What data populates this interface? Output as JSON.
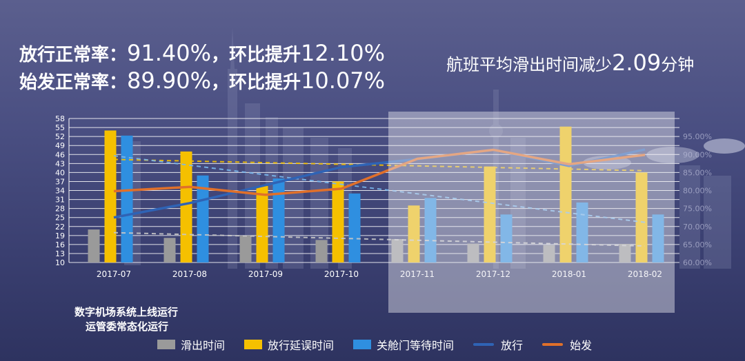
{
  "header": {
    "line1_label": "放行正常率：",
    "line1_rate": "91.40%",
    "line1_sep": "，环比提升",
    "line1_change": "12.10%",
    "line2_label": "始发正常率：",
    "line2_rate": "89.90%",
    "line2_sep": "，环比提升",
    "line2_change": "10.07%",
    "right_prefix": "航班平均滑出时间减少",
    "right_value": "2.09",
    "right_suffix": "分钟"
  },
  "notes": {
    "note1": "数字机场系统上线运行",
    "note2": "运管委常态化运行"
  },
  "colors": {
    "taxi_out": "#9a9a9a",
    "release_delay": "#f5c000",
    "door_wait": "#2f8fe0",
    "release_rate": "#2f63b5",
    "origin_rate": "#e0702a",
    "grid": "#ffffff",
    "highlight": "#e8e8f0"
  },
  "chart_data": {
    "type": "bar",
    "categories": [
      "2017-07",
      "2017-08",
      "2017-09",
      "2017-10",
      "2017-11",
      "2017-12",
      "2018-01",
      "2018-02"
    ],
    "y_ticks": [
      10,
      13,
      16,
      19,
      22,
      25,
      28,
      31,
      34,
      37,
      40,
      43,
      46,
      49,
      52,
      55,
      58
    ],
    "y2_ticks": [
      "60.00%",
      "65.00%",
      "70.00%",
      "75.00%",
      "80.00%",
      "85.00%",
      "90.00%",
      "95.00%"
    ],
    "ylim": [
      10,
      58
    ],
    "y2lim": [
      60,
      100
    ],
    "grid": true,
    "legend_position": "bottom",
    "highlight_from_category": "2017-11",
    "series": [
      {
        "name": "滑出时间",
        "kind": "bar",
        "values": [
          21,
          18.2,
          19,
          17.5,
          17.8,
          16.3,
          15.8,
          16.2
        ]
      },
      {
        "name": "放行延误时间",
        "kind": "bar",
        "values": [
          54,
          47,
          35.5,
          37,
          29,
          42,
          55.3,
          40
        ]
      },
      {
        "name": "关舱门等待时间",
        "kind": "bar",
        "values": [
          52.3,
          39,
          38,
          33,
          31.5,
          26,
          30,
          26
        ]
      },
      {
        "name": "放行",
        "kind": "line",
        "axis": "right",
        "values": [
          72.5,
          76.5,
          81.5,
          86.5,
          88.7,
          91.3,
          86.8,
          91.4
        ]
      },
      {
        "name": "始发",
        "kind": "line",
        "axis": "right",
        "values": [
          79.8,
          81,
          78.8,
          80.5,
          88.8,
          91.3,
          87.3,
          89.9
        ]
      }
    ]
  }
}
